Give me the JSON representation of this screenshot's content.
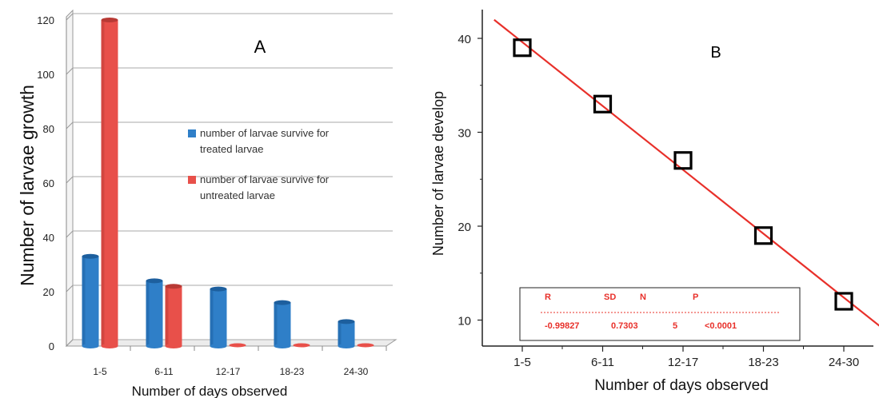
{
  "chart_data": [
    {
      "type": "bar",
      "panel_label": "A",
      "title": "",
      "xlabel": "Number of days observed",
      "ylabel": "Number of larvae growth",
      "categories": [
        "1-5",
        "6-11",
        "12-17",
        "18-23",
        "24-30"
      ],
      "ylim": [
        0,
        120
      ],
      "yticks": [
        0,
        20,
        40,
        60,
        80,
        100,
        120
      ],
      "grid": true,
      "legend_position": "right",
      "series": [
        {
          "name": "number of larvae survive for treated larvae",
          "legend_lines": [
            "number of larvae survive for",
            "treated larvae"
          ],
          "color": "#2f7fc8",
          "values": [
            33,
            24,
            21,
            16,
            9
          ]
        },
        {
          "name": "number of larvae survive for untreated larvae",
          "legend_lines": [
            "number of larvae survive for",
            "untreated larvae"
          ],
          "color": "#e8504a",
          "values": [
            120,
            22,
            0,
            0,
            0
          ]
        }
      ]
    },
    {
      "type": "scatter",
      "panel_label": "B",
      "title": "",
      "xlabel": "Number of days observed",
      "ylabel": "Number of larvae develop",
      "categories": [
        "1-5",
        "6-11",
        "12-17",
        "18-23",
        "24-30"
      ],
      "values": [
        39,
        33,
        27,
        19,
        12
      ],
      "ylim": [
        8,
        43
      ],
      "yticks": [
        10,
        20,
        30,
        40
      ],
      "grid": false,
      "fit_line": {
        "color": "#e8302a"
      },
      "stats_box": {
        "headers": [
          "R",
          "SD",
          "N",
          "P"
        ],
        "values": [
          "-0.99827",
          "0.7303",
          "5",
          "<0.0001"
        ],
        "color": "#e8302a"
      }
    }
  ]
}
